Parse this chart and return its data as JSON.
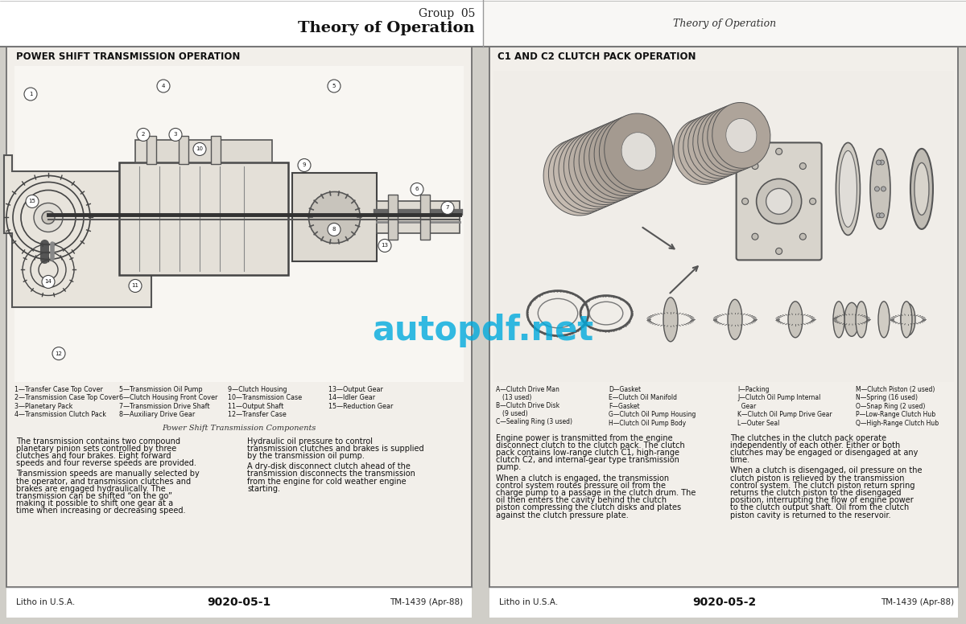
{
  "page_bg": "#d0cec8",
  "panel_bg": "#f0eeea",
  "panel_inner_bg": "#edeae4",
  "white": "#ffffff",
  "border_color": "#555555",
  "text_color": "#111111",
  "watermark_color": "#00aadd",
  "watermark_text": "autopdf.net",
  "header_left_line1": "Group  05",
  "header_left_line2": "Theory of Operation",
  "header_right": "Theory of Operation",
  "left_panel_title": "POWER SHIFT TRANSMISSION OPERATION",
  "right_panel_title": "C1 AND C2 CLUTCH PACK OPERATION",
  "left_legend_col1": [
    "1—Transfer Case Top Cover",
    "2—Transmission Case Top Cover",
    "3—Planetary Pack",
    "4—Transmission Clutch Pack"
  ],
  "left_legend_col2": [
    "5—Transmission Oil Pump",
    "6—Clutch Housing Front Cover",
    "7—Transmission Drive Shaft",
    "8—Auxiliary Drive Gear"
  ],
  "left_legend_col3": [
    "9—Clutch Housing",
    "10—Transmission Case",
    "11—Output Shaft",
    "12—Transfer Case"
  ],
  "left_legend_col4": [
    "13—Output Gear",
    "14—Idler Gear",
    "15—Reduction Gear"
  ],
  "left_caption": "Power Shift Transmission Components",
  "left_text_para1": "The transmission contains two compound planetary pinion sets controlled by three clutches and four brakes. Eight forward speeds and four reverse speeds are provided.",
  "left_text_para2": "Transmission speeds are manually selected by the operator, and transmission clutches and brakes are engaged hydraulically. The transmission can be shifted “on the go” making it possible to shift one gear at a time when increasing or decreasing speed.",
  "left_text_para3": "Hydraulic oil pressure to control transmission clutches and brakes is supplied by the transmission oil pump.",
  "left_text_para4": "A dry-disk disconnect clutch ahead of the transmission disconnects the transmission from the engine for cold weather engine starting.",
  "right_legend_col1a": "A—Clutch Drive Man",
  "right_legend_col1b": "(13 used)",
  "right_legend_col1c": "B—Clutch Drive Disk",
  "right_legend_col1d": "(9 used)",
  "right_legend_col1e": "C—Sealing Ring (3 used)",
  "right_legend_col2": [
    "D—Gasket",
    "E—Clutch Oil Manifold",
    "F—Gasket",
    "G—Clutch Oil Pump Housing",
    "H—Clutch Oil Pump Body"
  ],
  "right_legend_col3": [
    "I—Packing",
    "J—Clutch Oil Pump Internal",
    "  Gear",
    "K—Clutch Oil Pump Drive Gear",
    "L—Outer Seal"
  ],
  "right_legend_col4": [
    "M—Clutch Piston (2 used)",
    "N—Spring (16 used)",
    "O—Snap Ring (2 used)",
    "P—Low-Range Clutch Hub",
    "Q—High-Range Clutch Hub"
  ],
  "right_text_para1": "Engine power is transmitted from the engine disconnect clutch to the clutch pack. The clutch pack contains low-range clutch C1, high-range clutch C2, and internal-gear type transmission pump.",
  "right_text_para2": "When a clutch is engaged, the transmission control system routes pressure oil from the charge pump to a passage in the clutch drum. The oil then enters the cavity behind the clutch piston compressing the clutch disks and plates against the clutch pressure plate.",
  "right_text_para3": "The clutches in the clutch pack operate independently of each other. Either or both clutches may be engaged or disengaged at any time.",
  "right_text_para4": "When a clutch is disengaged, oil pressure on the clutch piston is relieved by the transmission control system. The clutch piston return spring returns the clutch piston to the disengaged position, interrupting the flow of engine power to the clutch output shaft. Oil from the clutch piston cavity is returned to the reservoir.",
  "footer_left_left": "Litho in U.S.A.",
  "footer_left_center": "9020-05-1",
  "footer_left_right": "TM-1439 (Apr-88)",
  "footer_right_left": "Litho in U.S.A.",
  "footer_right_center": "9020-05-2",
  "footer_right_right": "TM-1439 (Apr-88)"
}
